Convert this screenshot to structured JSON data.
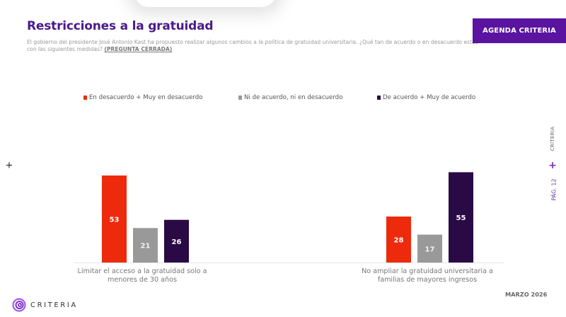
{
  "header": {
    "title": "Restricciones a la gratuidad",
    "subtitle": "El gobierno del presidente José Antonio Kast ha propuesto realizar algunos cambios a la política de gratuidad universitaria. ¿Qué tan de acuerdo o en desacuerdo estás con las siguientes medidas?",
    "subtitle_tag": "(PREGUNTA CERRADA)",
    "agenda_button": "AGENDA CRITERIA"
  },
  "side": {
    "brand": "CRITERIA",
    "plus": "+",
    "page": "PÁG. 12"
  },
  "left_marker": "+",
  "footer": {
    "logo_text": "CRITERIA",
    "date": "MARZO 2026"
  },
  "colors": {
    "brand_purple": "#5a14a0",
    "title_purple": "#4a1a8c",
    "disagree": "#ee2a0c",
    "neutral": "#999999",
    "agree": "#2a0a45"
  },
  "chart_data": {
    "type": "bar",
    "title": "",
    "xlabel": "",
    "ylabel": "",
    "ylim": [
      0,
      60
    ],
    "grid": false,
    "legend_position": "top",
    "data_labels": true,
    "categories": [
      "Limitar el acceso a la gratuidad solo a menores de 30 años",
      "No ampliar la gratuidad universitaria a familias de mayores ingresos"
    ],
    "series": [
      {
        "name": "En desacuerdo + Muy en desacuerdo",
        "color": "#ee2a0c",
        "values": [
          53,
          28
        ]
      },
      {
        "name": "Ni de acuerdo, ni en desacuerdo",
        "color": "#999999",
        "values": [
          21,
          17
        ]
      },
      {
        "name": "De acuerdo + Muy de acuerdo",
        "color": "#2a0a45",
        "values": [
          26,
          55
        ]
      }
    ]
  }
}
